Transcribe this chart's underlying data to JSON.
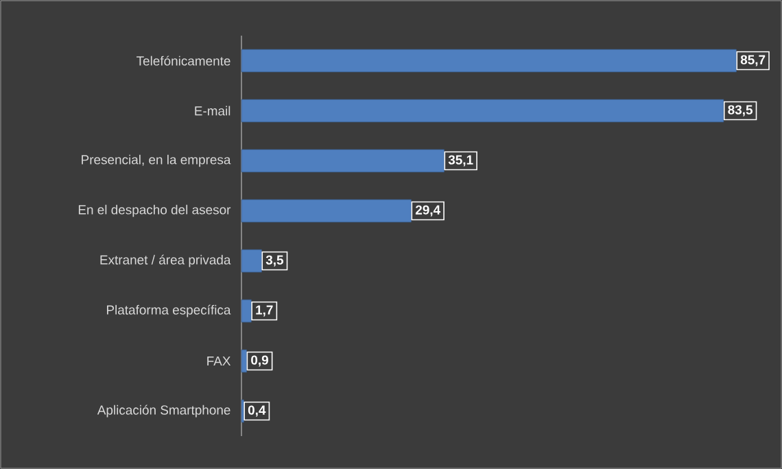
{
  "chart_data": {
    "type": "bar",
    "orientation": "horizontal",
    "categories": [
      "Telefónicamente",
      "E-mail",
      "Presencial, en la empresa",
      "En el despacho del asesor",
      "Extranet / área privada",
      "Plataforma específica",
      "FAX",
      "Aplicación Smartphone"
    ],
    "values": [
      85.7,
      83.5,
      35.1,
      29.4,
      3.5,
      1.7,
      0.9,
      0.4
    ],
    "value_labels": [
      "85,7",
      "83,5",
      "35,1",
      "29,4",
      "3,5",
      "1,7",
      "0,9",
      "0,4"
    ],
    "color": "#4f7fbf",
    "tick_labels": "y"
  }
}
